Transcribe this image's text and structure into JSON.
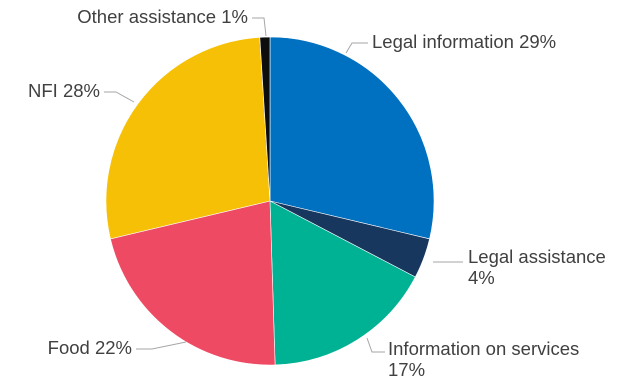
{
  "chart_data": {
    "type": "pie",
    "slices": [
      {
        "label": "Legal information",
        "value": 29,
        "display": "29%",
        "color": "#0070c0"
      },
      {
        "label": "Legal assistance",
        "value": 4,
        "display": "4%",
        "color": "#17375e"
      },
      {
        "label": "Information on services",
        "value": 17,
        "display": "17%",
        "color": "#00b294"
      },
      {
        "label": "Food",
        "value": 22,
        "display": "22%",
        "color": "#ef4a63"
      },
      {
        "label": "NFI",
        "value": 28,
        "display": "28%",
        "color": "#f5c006"
      },
      {
        "label": "Other assistance",
        "value": 1,
        "display": "1%",
        "color": "#0d0d0d"
      }
    ],
    "start_angle_deg": 0,
    "direction": "clockwise",
    "legend": "none",
    "data_labels": "category-and-percent-outside-with-leader-lines"
  }
}
